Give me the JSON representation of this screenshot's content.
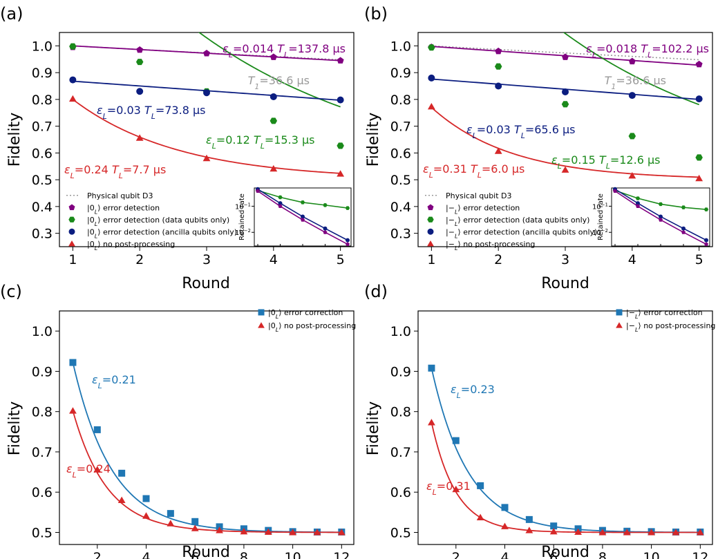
{
  "colors": {
    "purple": "#800080",
    "green": "#1a8a1a",
    "navy": "#0b1d80",
    "red": "#d62728",
    "gray": "#999999",
    "blue": "#1f77b4"
  },
  "chart_data": [
    {
      "id": "a",
      "panel_label": "(a)",
      "type": "scatter",
      "xlabel": "Round",
      "ylabel": "Fidelity",
      "xlim": [
        0.8,
        5.2
      ],
      "ylim": [
        0.25,
        1.05
      ],
      "xticks": [
        1,
        2,
        3,
        4,
        5
      ],
      "yticks": [
        0.3,
        0.4,
        0.5,
        0.6,
        0.7,
        0.8,
        0.9,
        1.0
      ],
      "grid": false,
      "legend_position": "lower-left",
      "series": [
        {
          "name": "Physical qubit D3",
          "marker": "none",
          "color": "gray",
          "line": "dotted",
          "fit": {
            "kind": "exp",
            "A": 0.5,
            "B": 0.5,
            "T": 36.6,
            "start": 0.95,
            "x0": 1
          },
          "x": [],
          "y": []
        },
        {
          "name": "|0_L⟩ error detection",
          "marker": "pentagon",
          "color": "purple",
          "x": [
            1,
            2,
            3,
            4,
            5
          ],
          "y": [
            0.995,
            0.985,
            0.972,
            0.958,
            0.945
          ],
          "fit": {
            "kind": "lin",
            "y1": 1.0,
            "y5": 0.945
          }
        },
        {
          "name": "|0_L⟩ error detection (data qubits only)",
          "marker": "hexagon",
          "color": "green",
          "x": [
            1,
            2,
            3,
            4,
            5
          ],
          "y": [
            0.998,
            0.94,
            0.83,
            0.72,
            0.627
          ],
          "fit": {
            "kind": "exp",
            "A": 1.05,
            "B": 0.5,
            "T": 3.0,
            "x0": 0.95,
            "start": 1.03,
            "end": 0.67
          }
        },
        {
          "name": "|0_L⟩ error detection (ancilla qubits only)",
          "marker": "circle",
          "color": "navy",
          "x": [
            1,
            2,
            3,
            4,
            5
          ],
          "y": [
            0.873,
            0.83,
            0.825,
            0.81,
            0.798
          ],
          "fit": {
            "kind": "lin",
            "y1": 0.868,
            "y5": 0.797
          }
        },
        {
          "name": "|0_L⟩ no post-processing",
          "marker": "triangle",
          "color": "red",
          "x": [
            1,
            2,
            3,
            4,
            5
          ],
          "y": [
            0.802,
            0.656,
            0.58,
            0.541,
            0.522
          ],
          "fit": {
            "kind": "exp",
            "A": 0.3,
            "B": 0.5,
            "T": 1.58,
            "x0": 1,
            "start": 0.8
          }
        }
      ],
      "annotations": [
        {
          "text": "εL=0.014 TL=137.8 μs",
          "color": "purple"
        },
        {
          "text": "T1=36.6 μs",
          "color": "gray"
        },
        {
          "text": "εL=0.03 TL=73.8 μs",
          "color": "navy"
        },
        {
          "text": "εL=0.12 TL=15.3 μs",
          "color": "green"
        },
        {
          "text": "εL=0.24 TL=7.7 μs",
          "color": "red"
        }
      ],
      "inset": {
        "ylabel": "Retained rate",
        "yscale": "log",
        "ylim": [
          0.003,
          0.5
        ],
        "yticks": [
          "10^-1",
          "10^-2"
        ],
        "series": [
          {
            "color": "green",
            "y": [
              0.4,
              0.22,
              0.14,
              0.11,
              0.085
            ]
          },
          {
            "color": "navy",
            "y": [
              0.45,
              0.13,
              0.04,
              0.014,
              0.005
            ]
          },
          {
            "color": "purple",
            "y": [
              0.38,
              0.1,
              0.03,
              0.01,
              0.0035
            ]
          }
        ]
      }
    },
    {
      "id": "b",
      "panel_label": "(b)",
      "type": "scatter",
      "xlabel": "Round",
      "ylabel": "Fidelity",
      "xlim": [
        0.8,
        5.2
      ],
      "ylim": [
        0.25,
        1.05
      ],
      "xticks": [
        1,
        2,
        3,
        4,
        5
      ],
      "yticks": [
        0.3,
        0.4,
        0.5,
        0.6,
        0.7,
        0.8,
        0.9,
        1.0
      ],
      "grid": false,
      "legend_position": "lower-left",
      "series": [
        {
          "name": "Physical qubit D3",
          "marker": "none",
          "color": "gray",
          "line": "dotted",
          "fit": {
            "kind": "exp",
            "A": 0.5,
            "B": 0.5,
            "T": 36.6,
            "start": 0.95,
            "x0": 1
          },
          "x": [],
          "y": []
        },
        {
          "name": "|−L⟩ error detection",
          "marker": "pentagon",
          "color": "purple",
          "x": [
            1,
            2,
            3,
            4,
            5
          ],
          "y": [
            0.995,
            0.98,
            0.958,
            0.942,
            0.931
          ],
          "fit": {
            "kind": "lin",
            "y1": 0.998,
            "y5": 0.928
          }
        },
        {
          "name": "|−L⟩ error detection (data qubits only)",
          "marker": "hexagon",
          "color": "green",
          "x": [
            1,
            2,
            3,
            4,
            5
          ],
          "y": [
            0.994,
            0.923,
            0.782,
            0.663,
            0.583
          ],
          "fit": {
            "kind": "exp",
            "A": 1.1,
            "B": 0.5,
            "T": 3.0,
            "x0": 0.9,
            "start": 1.03,
            "end": 0.625
          }
        },
        {
          "name": "|−L⟩ error detection (ancilla qubits only)",
          "marker": "circle",
          "color": "navy",
          "x": [
            1,
            2,
            3,
            4,
            5
          ],
          "y": [
            0.88,
            0.85,
            0.828,
            0.815,
            0.802
          ],
          "fit": {
            "kind": "lin",
            "y1": 0.876,
            "y5": 0.8
          }
        },
        {
          "name": "|−L⟩ no post-processing",
          "marker": "triangle",
          "color": "red",
          "x": [
            1,
            2,
            3,
            4,
            5
          ],
          "y": [
            0.773,
            0.607,
            0.537,
            0.515,
            0.505
          ],
          "fit": {
            "kind": "exp",
            "A": 0.27,
            "B": 0.5,
            "T": 1.2,
            "x0": 1,
            "start": 0.77
          }
        }
      ],
      "annotations": [
        {
          "text": "εL=0.018 TL=102.2 μs",
          "color": "purple"
        },
        {
          "text": "T1=36.6 μs",
          "color": "gray"
        },
        {
          "text": "εL=0.03 TL=65.6 μs",
          "color": "navy"
        },
        {
          "text": "εL=0.15 TL=12.6 μs",
          "color": "green"
        },
        {
          "text": "εL=0.31 TL=6.0 μs",
          "color": "red"
        }
      ],
      "inset": {
        "ylabel": "Retained rate",
        "yscale": "log",
        "ylim": [
          0.003,
          0.5
        ],
        "yticks": [
          "10^-1",
          "10^-2"
        ],
        "series": [
          {
            "color": "green",
            "y": [
              0.4,
              0.2,
              0.12,
              0.09,
              0.075
            ]
          },
          {
            "color": "navy",
            "y": [
              0.45,
              0.13,
              0.04,
              0.014,
              0.005
            ]
          },
          {
            "color": "purple",
            "y": [
              0.38,
              0.1,
              0.03,
              0.01,
              0.0035
            ]
          }
        ]
      }
    },
    {
      "id": "c",
      "panel_label": "(c)",
      "type": "scatter",
      "xlabel": "Round",
      "ylabel": "Fidelity",
      "xlim": [
        0.45,
        12.5
      ],
      "ylim": [
        0.47,
        1.05
      ],
      "xticks": [
        2,
        4,
        6,
        8,
        10,
        12
      ],
      "yticks": [
        0.5,
        0.6,
        0.7,
        0.8,
        0.9,
        1.0
      ],
      "grid": false,
      "legend_position": "top-right",
      "series": [
        {
          "name": "|0_L⟩ error correction",
          "marker": "square",
          "color": "blue",
          "x": [
            1,
            2,
            3,
            4,
            5,
            6,
            7,
            8,
            9,
            10,
            11,
            12
          ],
          "y": [
            0.922,
            0.755,
            0.647,
            0.584,
            0.547,
            0.527,
            0.514,
            0.509,
            0.505,
            0.502,
            0.501,
            0.501
          ],
          "fit": {
            "kind": "exp",
            "A": 0.422,
            "B": 0.5,
            "T": 1.6,
            "x0": 1
          }
        },
        {
          "name": "|0_L⟩ no post-processing",
          "marker": "triangle",
          "color": "red",
          "x": [
            1,
            2,
            3,
            4,
            5,
            6,
            7,
            8,
            9,
            10,
            11,
            12
          ],
          "y": [
            0.802,
            0.656,
            0.58,
            0.541,
            0.522,
            0.51,
            0.505,
            0.502,
            0.501,
            0.5,
            0.5,
            0.5
          ],
          "fit": {
            "kind": "exp",
            "A": 0.302,
            "B": 0.5,
            "T": 1.4,
            "x0": 1
          }
        }
      ],
      "annotations": [
        {
          "text": "εL=0.21",
          "color": "blue"
        },
        {
          "text": "εL=0.24",
          "color": "red"
        }
      ]
    },
    {
      "id": "d",
      "panel_label": "(d)",
      "type": "scatter",
      "xlabel": "Round",
      "ylabel": "Fidelity",
      "xlim": [
        0.45,
        12.5
      ],
      "ylim": [
        0.47,
        1.05
      ],
      "xticks": [
        2,
        4,
        6,
        8,
        10,
        12
      ],
      "yticks": [
        0.5,
        0.6,
        0.7,
        0.8,
        0.9,
        1.0
      ],
      "grid": false,
      "legend_position": "top-right",
      "series": [
        {
          "name": "|−L⟩ error correction",
          "marker": "square",
          "color": "blue",
          "x": [
            1,
            2,
            3,
            4,
            5,
            6,
            7,
            8,
            9,
            10,
            11,
            12
          ],
          "y": [
            0.908,
            0.728,
            0.616,
            0.562,
            0.532,
            0.516,
            0.509,
            0.505,
            0.503,
            0.502,
            0.501,
            0.501
          ],
          "fit": {
            "kind": "exp",
            "A": 0.408,
            "B": 0.5,
            "T": 1.5,
            "x0": 1
          }
        },
        {
          "name": "|−L⟩ no post-processing",
          "marker": "triangle",
          "color": "red",
          "x": [
            1,
            2,
            3,
            4,
            5,
            6,
            7,
            8,
            9,
            10,
            11,
            12
          ],
          "y": [
            0.773,
            0.607,
            0.537,
            0.515,
            0.505,
            0.502,
            0.501,
            0.5,
            0.5,
            0.5,
            0.5,
            0.5
          ],
          "fit": {
            "kind": "exp",
            "A": 0.273,
            "B": 0.5,
            "T": 1.0,
            "x0": 1
          }
        }
      ],
      "annotations": [
        {
          "text": "εL=0.23",
          "color": "blue"
        },
        {
          "text": "εL=0.31",
          "color": "red"
        }
      ]
    }
  ]
}
